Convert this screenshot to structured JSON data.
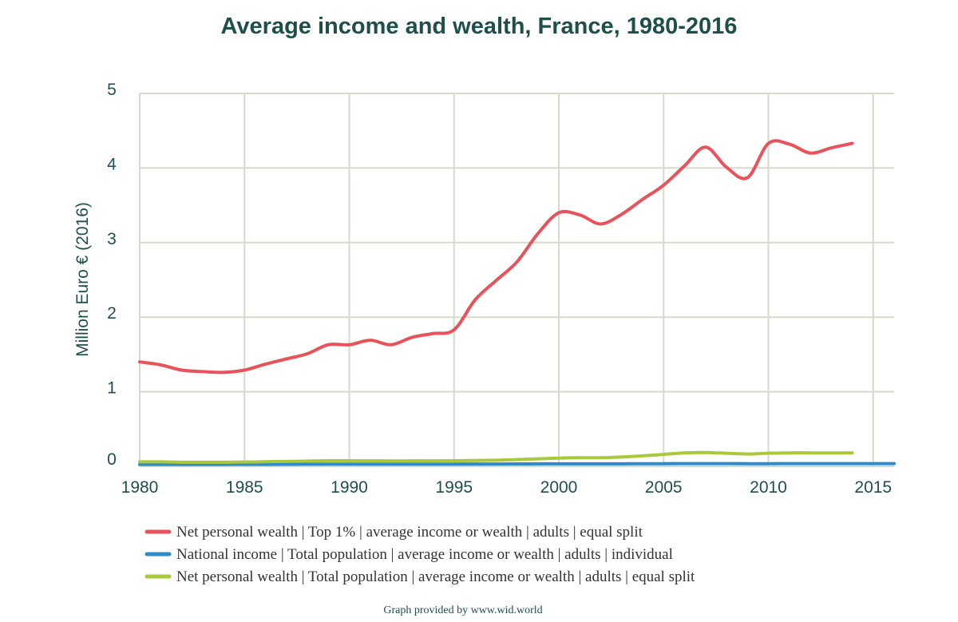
{
  "chart_data": {
    "type": "line",
    "title": "Average income and wealth, France, 1980-2016",
    "ylabel": "Million Euro € (2016)",
    "xlabel": "",
    "xlim": [
      1980,
      2016
    ],
    "ylim": [
      0,
      5
    ],
    "x_ticks": [
      "1980",
      "1985",
      "1990",
      "1995",
      "2000",
      "2005",
      "2010",
      "2015"
    ],
    "y_ticks": [
      "0",
      "1",
      "2",
      "3",
      "4",
      "5"
    ],
    "grid": true,
    "legend_position": "bottom",
    "series": [
      {
        "name": "Net personal wealth | Top 1% | average income or wealth | adults | equal split",
        "color": "#e8525a",
        "x": [
          1980,
          1981,
          1982,
          1983,
          1984,
          1985,
          1986,
          1987,
          1988,
          1989,
          1990,
          1991,
          1992,
          1993,
          1994,
          1995,
          1996,
          1997,
          1998,
          1999,
          2000,
          2001,
          2002,
          2003,
          2004,
          2005,
          2006,
          2007,
          2008,
          2009,
          2010,
          2011,
          2012,
          2013,
          2014
        ],
        "values": [
          1.4,
          1.36,
          1.29,
          1.27,
          1.26,
          1.29,
          1.37,
          1.44,
          1.51,
          1.63,
          1.63,
          1.69,
          1.63,
          1.73,
          1.78,
          1.83,
          2.23,
          2.49,
          2.74,
          3.12,
          3.4,
          3.37,
          3.25,
          3.38,
          3.58,
          3.77,
          4.03,
          4.28,
          4.01,
          3.87,
          4.33,
          4.32,
          4.2,
          4.27,
          4.33
        ]
      },
      {
        "name": "National income | Total population | average income or wealth | adults | individual",
        "color": "#2e8bc9",
        "x": [
          1980,
          1981,
          1982,
          1983,
          1984,
          1985,
          1986,
          1987,
          1988,
          1989,
          1990,
          1991,
          1992,
          1993,
          1994,
          1995,
          1996,
          1997,
          1998,
          1999,
          2000,
          2001,
          2002,
          2003,
          2004,
          2005,
          2006,
          2007,
          2008,
          2009,
          2010,
          2011,
          2012,
          2013,
          2014,
          2015,
          2016
        ],
        "values": [
          0.025,
          0.025,
          0.025,
          0.026,
          0.026,
          0.027,
          0.027,
          0.028,
          0.029,
          0.03,
          0.03,
          0.03,
          0.03,
          0.03,
          0.03,
          0.03,
          0.031,
          0.031,
          0.032,
          0.033,
          0.034,
          0.034,
          0.034,
          0.034,
          0.035,
          0.035,
          0.036,
          0.036,
          0.036,
          0.035,
          0.035,
          0.036,
          0.036,
          0.036,
          0.036,
          0.036,
          0.036
        ]
      },
      {
        "name": "Net personal wealth | Total population | average income or wealth | adults | equal split",
        "color": "#a9c93a",
        "x": [
          1980,
          1981,
          1982,
          1983,
          1984,
          1985,
          1986,
          1987,
          1988,
          1989,
          1990,
          1991,
          1992,
          1993,
          1994,
          1995,
          1996,
          1997,
          1998,
          1999,
          2000,
          2001,
          2002,
          2003,
          2004,
          2005,
          2006,
          2007,
          2008,
          2009,
          2010,
          2011,
          2012,
          2013,
          2014
        ],
        "values": [
          0.06,
          0.06,
          0.055,
          0.055,
          0.055,
          0.057,
          0.062,
          0.065,
          0.07,
          0.075,
          0.075,
          0.073,
          0.072,
          0.073,
          0.074,
          0.075,
          0.078,
          0.082,
          0.09,
          0.1,
          0.11,
          0.115,
          0.115,
          0.125,
          0.14,
          0.16,
          0.18,
          0.185,
          0.175,
          0.165,
          0.175,
          0.18,
          0.18,
          0.18,
          0.18
        ]
      }
    ]
  },
  "credit": "Graph provided by www.wid.world"
}
